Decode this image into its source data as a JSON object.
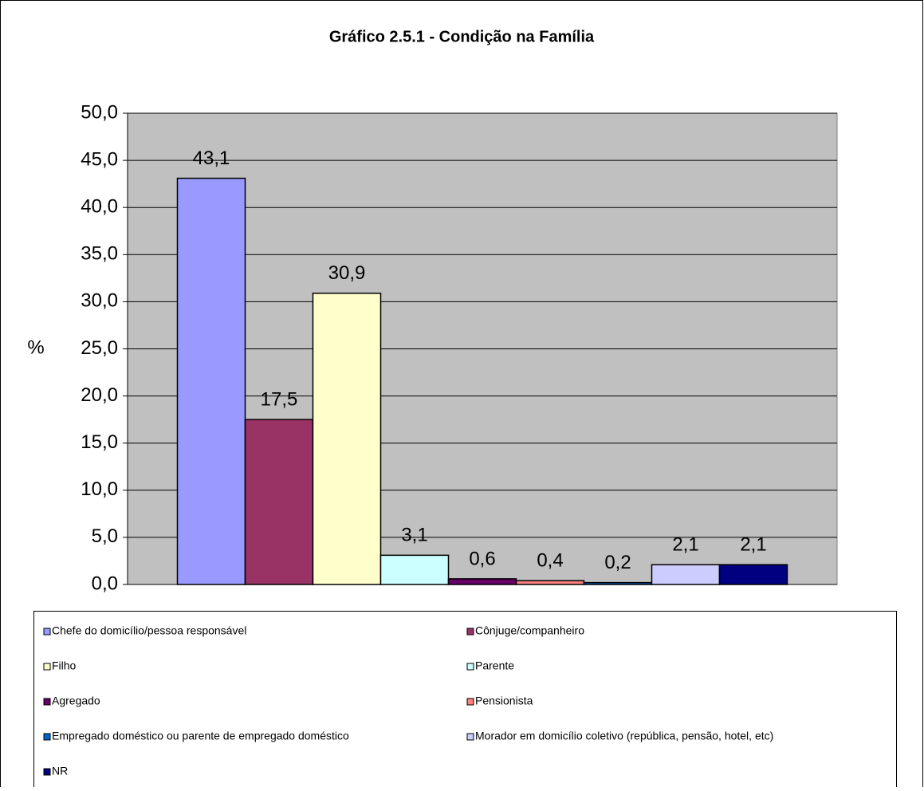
{
  "chart_data": {
    "type": "bar",
    "title": "Gráfico 2.5.1 - Condição na Família",
    "y_label": "%",
    "ylim": [
      0,
      50
    ],
    "yticks": [
      {
        "value": 0,
        "label": "0,0"
      },
      {
        "value": 5,
        "label": "5,0"
      },
      {
        "value": 10,
        "label": "10,0"
      },
      {
        "value": 15,
        "label": "15,0"
      },
      {
        "value": 20,
        "label": "20,0"
      },
      {
        "value": 25,
        "label": "25,0"
      },
      {
        "value": 30,
        "label": "30,0"
      },
      {
        "value": 35,
        "label": "35,0"
      },
      {
        "value": 40,
        "label": "40,0"
      },
      {
        "value": 45,
        "label": "45,0"
      },
      {
        "value": 50,
        "label": "50,0"
      }
    ],
    "grid": true,
    "legend": "bottom",
    "series": [
      {
        "name": "Chefe do domicílio/pessoa responsável",
        "color": "#9999FF",
        "values": [
          43.1
        ],
        "value_labels": [
          "43,1"
        ]
      },
      {
        "name": "Cônjuge/companheiro",
        "color": "#993366",
        "values": [
          17.5
        ],
        "value_labels": [
          "17,5"
        ]
      },
      {
        "name": "Filho",
        "color": "#FFFFCC",
        "values": [
          30.9
        ],
        "value_labels": [
          "30,9"
        ]
      },
      {
        "name": "Parente",
        "color": "#CCFFFF",
        "values": [
          3.1
        ],
        "value_labels": [
          "3,1"
        ]
      },
      {
        "name": "Agregado",
        "color": "#660066",
        "values": [
          0.6
        ],
        "value_labels": [
          "0,6"
        ]
      },
      {
        "name": "Pensionista",
        "color": "#FF8080",
        "values": [
          0.4
        ],
        "value_labels": [
          "0,4"
        ]
      },
      {
        "name": "Empregado doméstico ou parente de empregado doméstico",
        "color": "#0066CC",
        "values": [
          0.2
        ],
        "value_labels": [
          "0,2"
        ]
      },
      {
        "name": "Morador em domicílio coletivo (república, pensão, hotel, etc)",
        "color": "#CCCCFF",
        "values": [
          2.1
        ],
        "value_labels": [
          "2,1"
        ]
      },
      {
        "name": "NR",
        "color": "#000080",
        "values": [
          2.1
        ],
        "value_labels": [
          "2,1"
        ]
      }
    ]
  }
}
